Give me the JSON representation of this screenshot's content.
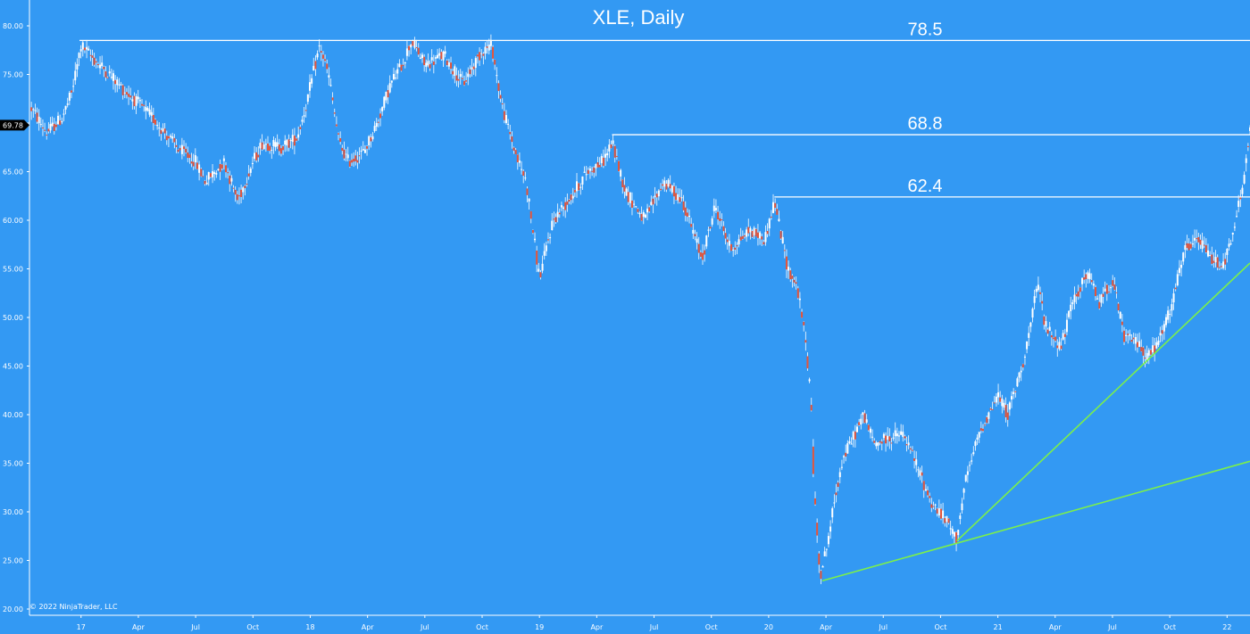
{
  "chart_data": {
    "type": "candlestick",
    "title": "XLE, Daily",
    "copyright": "© 2022 NinjaTrader, LLC",
    "last_price_label": "69.78",
    "ylim": [
      20,
      81
    ],
    "y_ticks": [
      "80.00",
      "75.00",
      "70.00",
      "65.00",
      "60.00",
      "55.00",
      "50.00",
      "45.00",
      "40.00",
      "35.00",
      "30.00",
      "25.00",
      "20.00"
    ],
    "x_ticks": [
      "17",
      "Apr",
      "Jul",
      "Oct",
      "18",
      "Apr",
      "Jul",
      "Oct",
      "19",
      "Apr",
      "Jul",
      "Oct",
      "20",
      "Apr",
      "Jul",
      "Oct",
      "21",
      "Apr",
      "Jul",
      "Oct",
      "22"
    ],
    "x_tick_pos": [
      1.0,
      4.0,
      7.0,
      10.0,
      13.0,
      16.0,
      19.0,
      22.0,
      25.0,
      28.0,
      31.0,
      34.0,
      37.0,
      40.0,
      43.0,
      46.0,
      49.0,
      52.0,
      55.0,
      58.0,
      61.0
    ],
    "xlim": [
      -1.7,
      62.2
    ],
    "colors": {
      "background": "#3399f3",
      "up": "#ffffff",
      "down": "#e5553b",
      "wick": "#ffffff",
      "levels": "#ffffff",
      "trend": "#7cf04a"
    },
    "path_anchors": [
      [
        -1.6,
        71.5
      ],
      [
        -0.8,
        69.0
      ],
      [
        0.0,
        70.5
      ],
      [
        0.5,
        73.0
      ],
      [
        1.0,
        78.0
      ],
      [
        1.7,
        76.5
      ],
      [
        2.5,
        75.0
      ],
      [
        3.2,
        73.5
      ],
      [
        4.0,
        72.0
      ],
      [
        5.0,
        70.0
      ],
      [
        6.0,
        67.5
      ],
      [
        7.0,
        66.0
      ],
      [
        7.5,
        64.0
      ],
      [
        8.5,
        66.0
      ],
      [
        9.2,
        62.0
      ],
      [
        10.0,
        66.0
      ],
      [
        10.5,
        68.0
      ],
      [
        11.5,
        67.5
      ],
      [
        12.3,
        68.5
      ],
      [
        12.8,
        72.0
      ],
      [
        13.5,
        78.0
      ],
      [
        14.0,
        74.5
      ],
      [
        14.5,
        68.0
      ],
      [
        15.0,
        66.0
      ],
      [
        15.8,
        67.0
      ],
      [
        16.5,
        70.0
      ],
      [
        17.2,
        74.0
      ],
      [
        17.8,
        76.0
      ],
      [
        18.3,
        78.5
      ],
      [
        19.0,
        76.0
      ],
      [
        20.0,
        77.0
      ],
      [
        21.0,
        74.0
      ],
      [
        22.0,
        77.5
      ],
      [
        22.5,
        78.0
      ],
      [
        23.0,
        72.0
      ],
      [
        23.8,
        66.5
      ],
      [
        24.3,
        64.0
      ],
      [
        25.0,
        54.0
      ],
      [
        25.7,
        60.0
      ],
      [
        26.5,
        62.0
      ],
      [
        27.5,
        65.0
      ],
      [
        28.3,
        66.0
      ],
      [
        28.8,
        68.0
      ],
      [
        29.5,
        63.0
      ],
      [
        30.5,
        60.0
      ],
      [
        31.5,
        64.0
      ],
      [
        32.5,
        62.0
      ],
      [
        33.5,
        56.0
      ],
      [
        34.2,
        61.5
      ],
      [
        35.0,
        57.0
      ],
      [
        36.0,
        59.0
      ],
      [
        36.8,
        58.0
      ],
      [
        37.3,
        62.0
      ],
      [
        38.0,
        55.0
      ],
      [
        38.5,
        53.0
      ],
      [
        38.9,
        48.0
      ],
      [
        39.2,
        42.0
      ],
      [
        39.4,
        31.0
      ],
      [
        39.7,
        23.5
      ],
      [
        40.0,
        26.0
      ],
      [
        40.8,
        35.0
      ],
      [
        41.5,
        38.0
      ],
      [
        42.0,
        40.0
      ],
      [
        42.5,
        37.0
      ],
      [
        43.2,
        37.5
      ],
      [
        44.0,
        38.0
      ],
      [
        44.5,
        36.0
      ],
      [
        45.5,
        31.0
      ],
      [
        46.5,
        28.5
      ],
      [
        46.8,
        27.0
      ],
      [
        47.3,
        33.0
      ],
      [
        48.0,
        38.0
      ],
      [
        49.0,
        42.0
      ],
      [
        49.5,
        40.0
      ],
      [
        50.2,
        44.5
      ],
      [
        50.6,
        48.0
      ],
      [
        51.1,
        53.5
      ],
      [
        51.5,
        49.0
      ],
      [
        52.3,
        47.0
      ],
      [
        53.0,
        52.0
      ],
      [
        53.7,
        54.5
      ],
      [
        54.3,
        51.5
      ],
      [
        55.0,
        54.0
      ],
      [
        55.6,
        48.0
      ],
      [
        56.3,
        47.5
      ],
      [
        56.8,
        46.0
      ],
      [
        57.3,
        47.0
      ],
      [
        58.0,
        50.5
      ],
      [
        58.8,
        57.0
      ],
      [
        59.5,
        58.0
      ],
      [
        60.2,
        56.0
      ],
      [
        60.8,
        55.5
      ],
      [
        61.2,
        57.5
      ],
      [
        61.5,
        60.5
      ],
      [
        61.9,
        64.5
      ],
      [
        62.2,
        69.5
      ]
    ],
    "levels": [
      {
        "label": "78.5",
        "value": 78.5,
        "x_start": 0.92
      },
      {
        "label": "68.8",
        "value": 68.8,
        "x_start": 28.8
      },
      {
        "label": "62.4",
        "value": 62.4,
        "x_start": 37.3
      }
    ],
    "trendlines": [
      {
        "x1": 39.8,
        "y1": 22.9,
        "x2": 62.2,
        "y2": 35.2
      },
      {
        "x1": 46.85,
        "y1": 27.0,
        "x2": 62.2,
        "y2": 55.6
      }
    ]
  }
}
